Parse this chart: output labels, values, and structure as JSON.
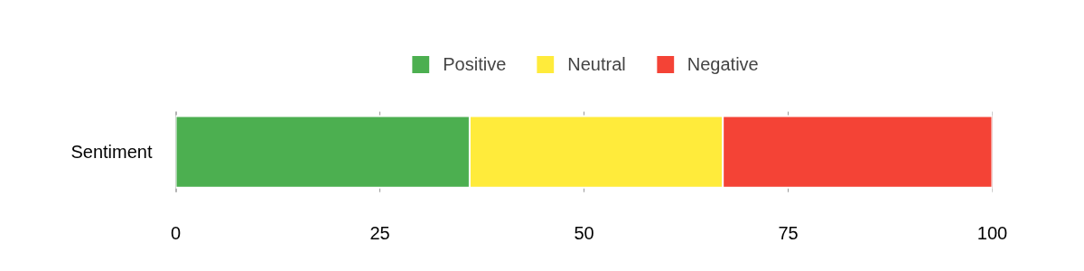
{
  "chart_data": {
    "type": "bar",
    "orientation": "horizontal",
    "stacked": true,
    "categories": [
      "Sentiment"
    ],
    "series": [
      {
        "name": "Positive",
        "color": "#4caf50",
        "values": [
          36
        ]
      },
      {
        "name": "Neutral",
        "color": "#ffeb3b",
        "values": [
          31
        ]
      },
      {
        "name": "Negative",
        "color": "#f44336",
        "values": [
          33
        ]
      }
    ],
    "xlim": [
      0,
      100
    ],
    "xticks": [
      0,
      25,
      50,
      75,
      100
    ],
    "grid": "x",
    "legend": "top"
  }
}
